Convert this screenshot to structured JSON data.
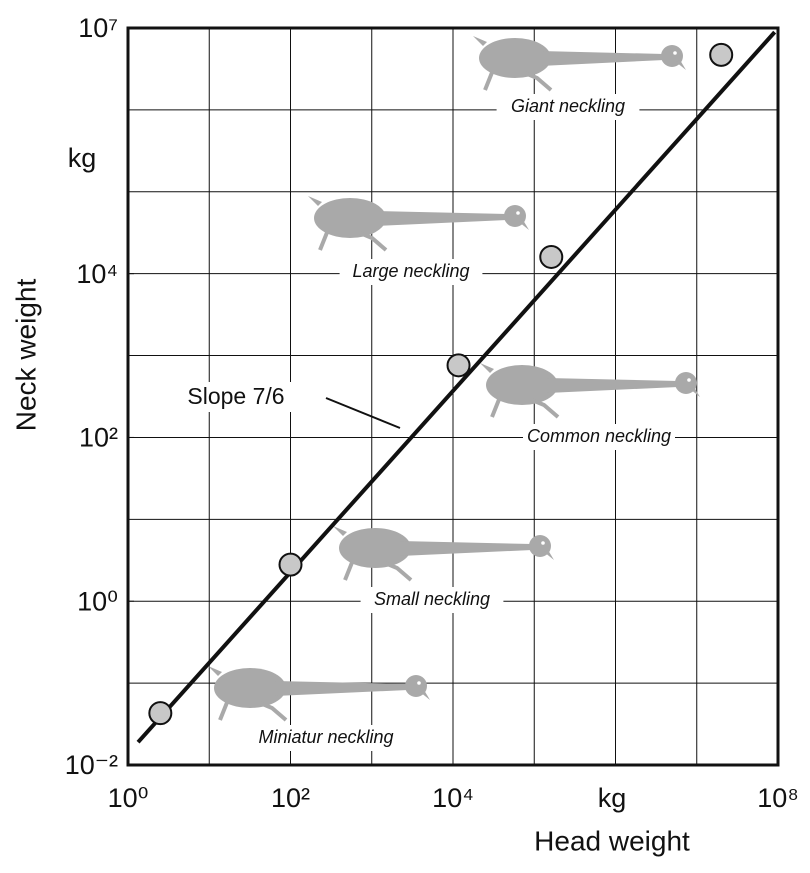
{
  "chart_data": {
    "type": "scatter",
    "x_label": "Head weight",
    "y_label": "Neck weight",
    "x_unit": "kg",
    "y_unit": "kg",
    "xscale": "log",
    "yscale": "log",
    "grid": true,
    "xlim": [
      1,
      100000000
    ],
    "ylim": [
      0.01,
      10000000
    ],
    "xticks": [
      {
        "value": 1,
        "label": "10⁰"
      },
      {
        "value": 100,
        "label": "10²"
      },
      {
        "value": 10000,
        "label": "10⁴"
      },
      {
        "value": 100000000,
        "label": "10⁸"
      }
    ],
    "yticks": [
      {
        "value": 0.01,
        "label": "10⁻²"
      },
      {
        "value": 1,
        "label": "10⁰"
      },
      {
        "value": 100,
        "label": "10²"
      },
      {
        "value": 10000,
        "label": "10⁴"
      },
      {
        "value": 10000000,
        "label": "10⁷"
      }
    ],
    "points": {
      "color": "#c8c8c8",
      "labels": [
        "Miniatur neckling",
        "Small neckling",
        "Common neckling",
        "Large neckling",
        "Giant neckling"
      ],
      "x": [
        2.5,
        100,
        11700,
        162000,
        20000000
      ],
      "y": [
        0.043,
        2.8,
        760,
        16000,
        4700000
      ]
    },
    "line": {
      "label": "Slope 7/6",
      "color": "#111111",
      "x": [
        1.33,
        91000000
      ],
      "y": [
        0.019,
        8900000
      ]
    }
  }
}
